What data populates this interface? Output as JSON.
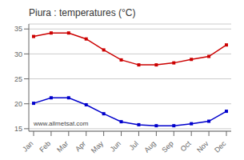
{
  "chart_data": {
    "type": "line",
    "title": "Piura : temperatures (°C)",
    "categories": [
      "Jan",
      "Feb",
      "Mar",
      "Apr",
      "May",
      "Jun",
      "Jul",
      "Aug",
      "Sep",
      "Oct",
      "Nov",
      "Dec"
    ],
    "series": [
      {
        "color": "#cc0000",
        "marker": "square",
        "values": [
          33.5,
          34.2,
          34.2,
          33.0,
          30.8,
          28.8,
          27.8,
          27.8,
          28.2,
          28.9,
          29.5,
          31.8
        ]
      },
      {
        "color": "#0000cc",
        "marker": "square",
        "values": [
          20.1,
          21.2,
          21.2,
          19.8,
          18.0,
          16.4,
          15.8,
          15.6,
          15.6,
          16.0,
          16.5,
          18.5
        ]
      }
    ],
    "ylim": [
      14.5,
      36
    ],
    "yticks": [
      15,
      20,
      25,
      30,
      35
    ],
    "grid": true,
    "annotations": [
      "www.allmetsat.com"
    ]
  }
}
